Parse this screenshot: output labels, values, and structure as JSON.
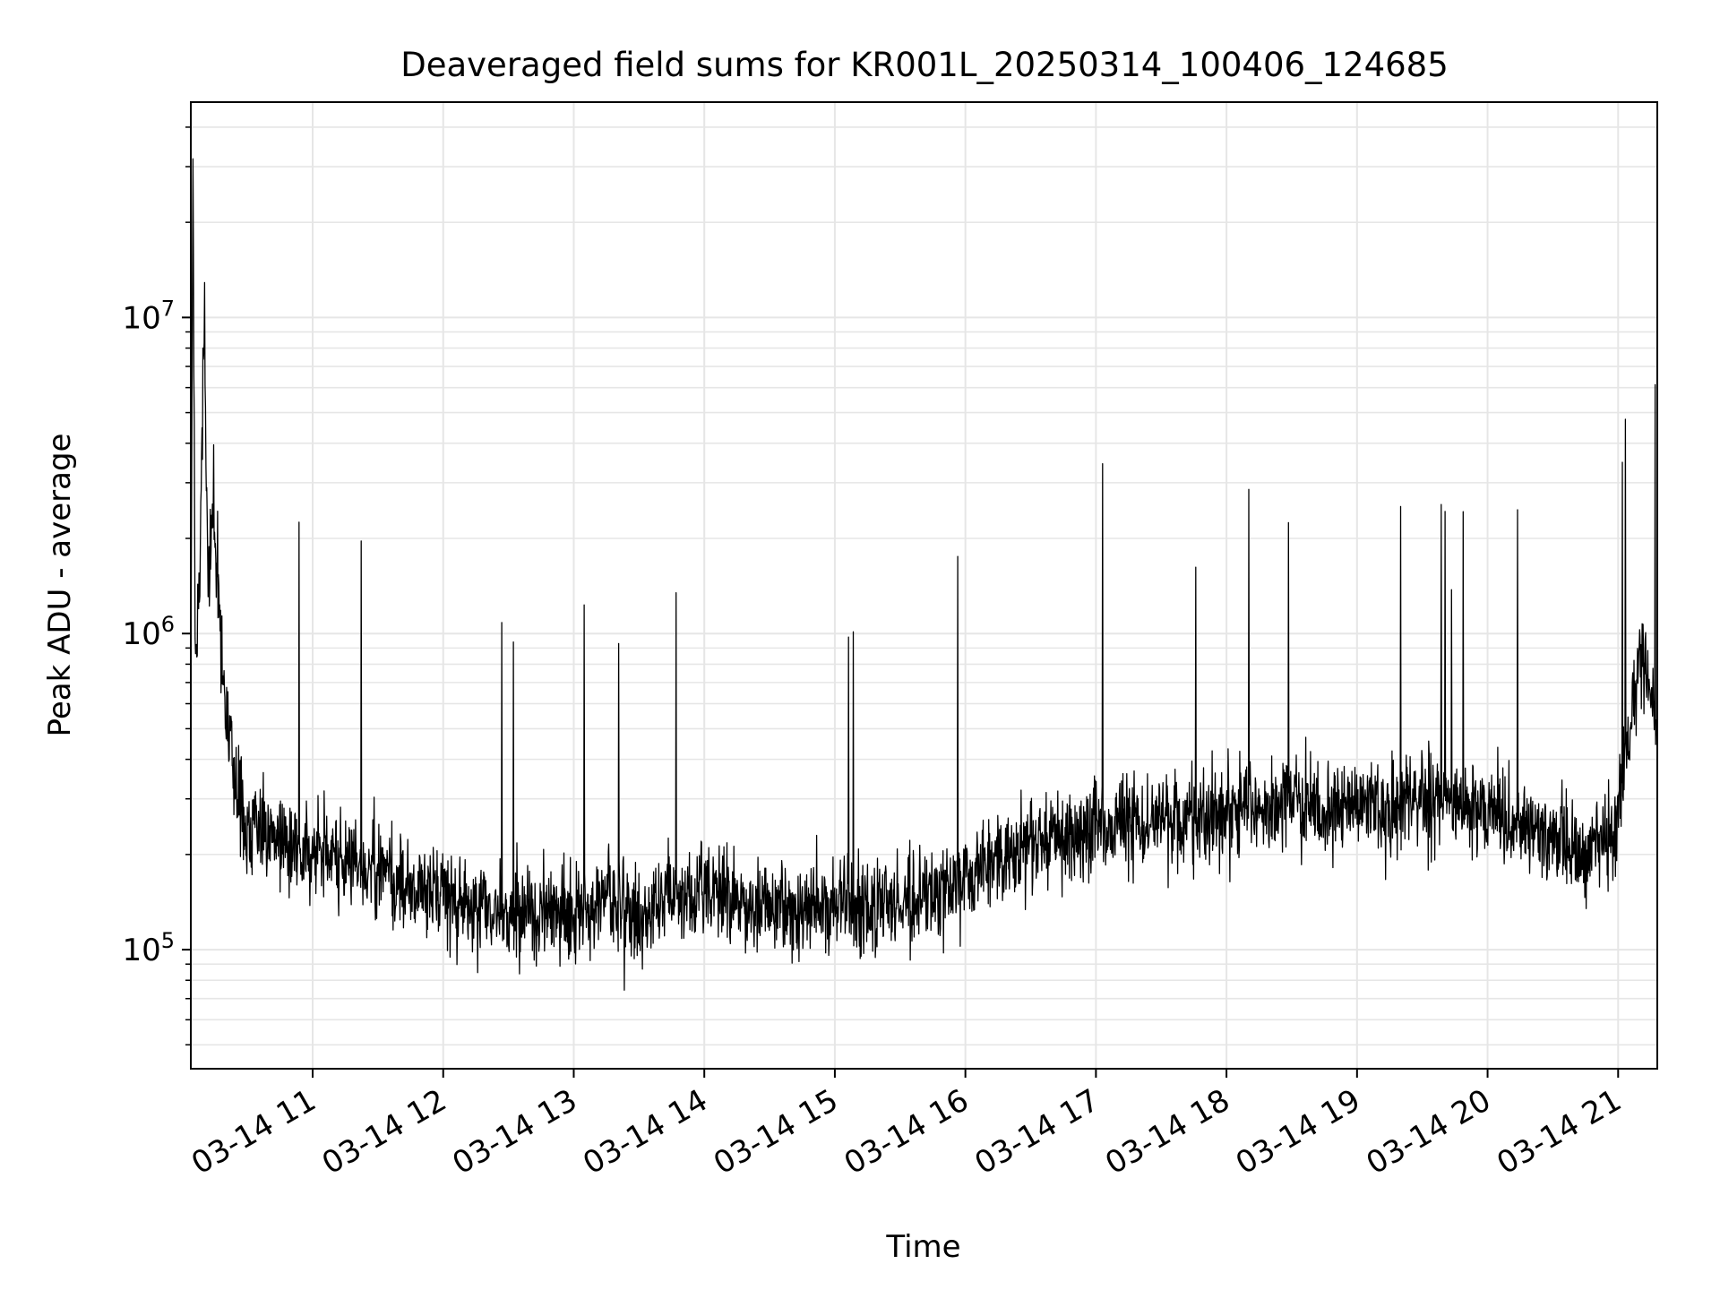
{
  "chart_data": {
    "type": "line",
    "title": "Deaveraged field sums for KR001L_20250314_100406_124685",
    "xlabel": "Time",
    "ylabel": "Peak ADU - average",
    "yscale": "log",
    "ylim": [
      42000,
      48000000
    ],
    "xlim": [
      "2025-03-14 10:04",
      "2025-03-14 21:18"
    ],
    "grid": true,
    "line_color": "#000000",
    "x_ticks": [
      "03-14 11",
      "03-14 12",
      "03-14 13",
      "03-14 14",
      "03-14 15",
      "03-14 16",
      "03-14 17",
      "03-14 18",
      "03-14 19",
      "03-14 20",
      "03-14 21"
    ],
    "y_ticks": [
      {
        "value": 100000,
        "base": "10",
        "exp": "5"
      },
      {
        "value": 1000000,
        "base": "10",
        "exp": "6"
      },
      {
        "value": 10000000,
        "base": "10",
        "exp": "7"
      }
    ],
    "series": [
      {
        "x": [
          "2025-03-14 10:04",
          "2025-03-14 10:05",
          "2025-03-14 10:06",
          "2025-03-14 10:08",
          "2025-03-14 10:10",
          "2025-03-14 10:12",
          "2025-03-14 10:14",
          "2025-03-14 10:16",
          "2025-03-14 10:18",
          "2025-03-14 10:20",
          "2025-03-14 10:25",
          "2025-03-14 10:30",
          "2025-03-14 10:35",
          "2025-03-14 10:40",
          "2025-03-14 10:45",
          "2025-03-14 10:50",
          "2025-03-14 11:00",
          "2025-03-14 11:15",
          "2025-03-14 11:30",
          "2025-03-14 11:45",
          "2025-03-14 12:00",
          "2025-03-14 12:15",
          "2025-03-14 12:30",
          "2025-03-14 12:45",
          "2025-03-14 13:00",
          "2025-03-14 13:15",
          "2025-03-14 13:30",
          "2025-03-14 13:45",
          "2025-03-14 14:00",
          "2025-03-14 14:15",
          "2025-03-14 14:30",
          "2025-03-14 14:45",
          "2025-03-14 15:00",
          "2025-03-14 15:15",
          "2025-03-14 15:30",
          "2025-03-14 15:45",
          "2025-03-14 16:00",
          "2025-03-14 16:15",
          "2025-03-14 16:30",
          "2025-03-14 16:45",
          "2025-03-14 17:00",
          "2025-03-14 17:15",
          "2025-03-14 17:30",
          "2025-03-14 17:45",
          "2025-03-14 18:00",
          "2025-03-14 18:15",
          "2025-03-14 18:30",
          "2025-03-14 18:45",
          "2025-03-14 19:00",
          "2025-03-14 19:15",
          "2025-03-14 19:30",
          "2025-03-14 19:45",
          "2025-03-14 20:00",
          "2025-03-14 20:15",
          "2025-03-14 20:30",
          "2025-03-14 20:45",
          "2025-03-14 21:00",
          "2025-03-14 21:05",
          "2025-03-14 21:10",
          "2025-03-14 21:15",
          "2025-03-14 21:18"
        ],
        "y": [
          700000,
          35000000,
          900000,
          1200000,
          10000000,
          1500000,
          2500000,
          1800000,
          900000,
          600000,
          300000,
          250000,
          260000,
          240000,
          230000,
          210000,
          200000,
          190000,
          180000,
          160000,
          150000,
          140000,
          130000,
          130000,
          130000,
          140000,
          130000,
          150000,
          150000,
          140000,
          140000,
          130000,
          140000,
          135000,
          140000,
          150000,
          165000,
          190000,
          210000,
          230000,
          240000,
          250000,
          260000,
          260000,
          270000,
          280000,
          300000,
          280000,
          290000,
          280000,
          300000,
          290000,
          270000,
          250000,
          230000,
          200000,
          260000,
          450000,
          800000,
          700000,
          500000
        ]
      }
    ]
  }
}
